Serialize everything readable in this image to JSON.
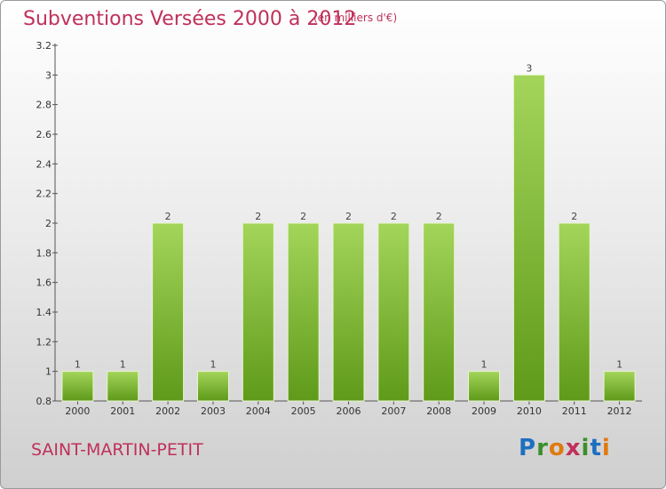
{
  "title": "Subventions Versées 2000 à 2012",
  "subtitle": "(en milliers d'€)",
  "commune": "SAINT-MARTIN-PETIT",
  "logo": {
    "text": "Proxiti",
    "letters": [
      "P",
      "r",
      "o",
      "x",
      "i",
      "t",
      "i"
    ],
    "colors": [
      "#1e6fc0",
      "#3a8f2a",
      "#e07a10",
      "#c0305a",
      "#3a8f2a",
      "#1e6fc0",
      "#e07a10"
    ]
  },
  "colors": {
    "title": "#c0305a",
    "bar_light": "#a3d55a",
    "bar_dark": "#5f9a1a"
  },
  "chart_data": {
    "type": "bar",
    "categories": [
      "2000",
      "2001",
      "2002",
      "2003",
      "2004",
      "2005",
      "2006",
      "2007",
      "2008",
      "2009",
      "2010",
      "2011",
      "2012"
    ],
    "values": [
      1,
      1,
      2,
      1,
      2,
      2,
      2,
      2,
      2,
      1,
      3,
      2,
      1
    ],
    "data_labels": [
      "1",
      "1",
      "2",
      "1",
      "2",
      "2",
      "2",
      "2",
      "2",
      "1",
      "3",
      "2",
      "1"
    ],
    "ylim": [
      0.8,
      3.2
    ],
    "yticks": [
      0.8,
      1,
      1.2,
      1.4,
      1.6,
      1.8,
      2,
      2.2,
      2.4,
      2.6,
      2.8,
      3,
      3.2
    ],
    "ytick_labels": [
      "0.8",
      "1",
      "1.2",
      "1.4",
      "1.6",
      "1.8",
      "2",
      "2.2",
      "2.4",
      "2.6",
      "2.8",
      "3",
      "3.2"
    ],
    "grid": false
  }
}
